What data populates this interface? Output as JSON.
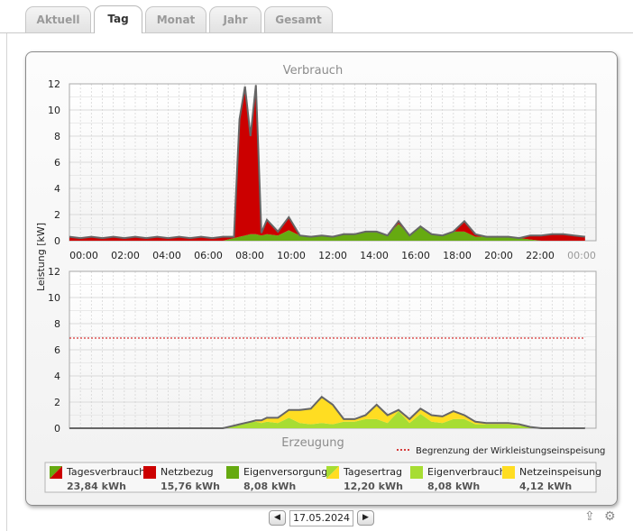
{
  "tabs": [
    {
      "label": "Aktuell",
      "active": false
    },
    {
      "label": "Tag",
      "active": true
    },
    {
      "label": "Monat",
      "active": false
    },
    {
      "label": "Jahr",
      "active": false
    },
    {
      "label": "Gesamt",
      "active": false
    }
  ],
  "colors": {
    "netzbezug": "#cc0000",
    "eigenversorgung": "#66aa11",
    "eigenverbrauch": "#a7dd33",
    "netzeinspeisung": "#ffdd22",
    "outline": "#666666",
    "limit": "#cc0000",
    "title": "#8c8c8c"
  },
  "chart_data": [
    {
      "type": "area",
      "title": "Verbrauch",
      "ylabel": "Leistung [kW]",
      "ylim": [
        0,
        12
      ],
      "yticks": [
        "0",
        "2",
        "4",
        "6",
        "8",
        "10",
        "12"
      ],
      "xticks": [
        "00:00",
        "02:00",
        "04:00",
        "06:00",
        "08:00",
        "10:00",
        "12:00",
        "14:00",
        "16:00",
        "18:00",
        "20:00",
        "22:00",
        "00:00"
      ],
      "x_hours": [
        0,
        0.5,
        1,
        1.5,
        2,
        2.5,
        3,
        3.5,
        4,
        4.5,
        5,
        5.5,
        6,
        6.5,
        7,
        7.5,
        7.75,
        8,
        8.25,
        8.5,
        8.75,
        9,
        9.5,
        10,
        10.5,
        11,
        11.5,
        12,
        12.5,
        13,
        13.5,
        14,
        14.5,
        15,
        15.5,
        16,
        16.5,
        17,
        17.5,
        18,
        18.5,
        19,
        19.5,
        20,
        20.5,
        21,
        21.5,
        22,
        22.5,
        23,
        23.5
      ],
      "series": [
        {
          "name": "Eigenversorgung",
          "values": [
            0,
            0,
            0,
            0,
            0,
            0,
            0,
            0,
            0,
            0,
            0,
            0,
            0,
            0,
            0,
            0.2,
            0.3,
            0.4,
            0.5,
            0.5,
            0.4,
            0.5,
            0.4,
            0.8,
            0.4,
            0.3,
            0.4,
            0.3,
            0.5,
            0.5,
            0.7,
            0.7,
            0.4,
            1.3,
            0.4,
            1.1,
            0.5,
            0.4,
            0.7,
            0.7,
            0.3,
            0.3,
            0.3,
            0.3,
            0.2,
            0.1,
            0,
            0,
            0,
            0,
            0
          ]
        },
        {
          "name": "Netzbezug",
          "values": [
            0.3,
            0.2,
            0.3,
            0.2,
            0.3,
            0.2,
            0.3,
            0.2,
            0.3,
            0.2,
            0.3,
            0.2,
            0.3,
            0.2,
            0.3,
            0.1,
            9.0,
            11.4,
            7.5,
            11.4,
            0.2,
            1.1,
            0.3,
            1.0,
            0,
            0,
            0,
            0,
            0,
            0,
            0,
            0,
            0,
            0.2,
            0,
            0,
            0,
            0,
            0,
            0.8,
            0.2,
            0,
            0,
            0,
            0,
            0.3,
            0.4,
            0.5,
            0.5,
            0.4,
            0.3
          ]
        }
      ],
      "total": [
        0.3,
        0.2,
        0.3,
        0.2,
        0.3,
        0.2,
        0.3,
        0.2,
        0.3,
        0.2,
        0.3,
        0.2,
        0.3,
        0.2,
        0.3,
        0.3,
        9.3,
        11.8,
        8.0,
        11.9,
        0.6,
        1.6,
        0.7,
        1.8,
        0.4,
        0.3,
        0.4,
        0.3,
        0.5,
        0.5,
        0.7,
        0.7,
        0.4,
        1.5,
        0.4,
        1.1,
        0.5,
        0.4,
        0.7,
        1.5,
        0.5,
        0.3,
        0.3,
        0.3,
        0.2,
        0.4,
        0.4,
        0.5,
        0.5,
        0.4,
        0.3
      ]
    },
    {
      "type": "area",
      "title": "Erzeugung",
      "ylabel": "Leistung [kW]",
      "ylim": [
        0,
        12
      ],
      "yticks": [
        "0",
        "2",
        "4",
        "6",
        "8",
        "10",
        "12"
      ],
      "limit_value": 6.9,
      "limit_label": "Begrenzung der Wirkleistungseinspeisung",
      "x_hours": [
        0,
        0.5,
        1,
        1.5,
        2,
        2.5,
        3,
        3.5,
        4,
        4.5,
        5,
        5.5,
        6,
        6.5,
        7,
        7.5,
        7.75,
        8,
        8.25,
        8.5,
        8.75,
        9,
        9.5,
        10,
        10.5,
        11,
        11.5,
        12,
        12.5,
        13,
        13.5,
        14,
        14.5,
        15,
        15.5,
        16,
        16.5,
        17,
        17.5,
        18,
        18.5,
        19,
        19.5,
        20,
        20.5,
        21,
        21.5,
        22,
        22.5,
        23,
        23.5
      ],
      "series": [
        {
          "name": "Eigenverbrauch",
          "values": [
            0,
            0,
            0,
            0,
            0,
            0,
            0,
            0,
            0,
            0,
            0,
            0,
            0,
            0,
            0,
            0.2,
            0.3,
            0.4,
            0.5,
            0.5,
            0.4,
            0.5,
            0.4,
            0.8,
            0.4,
            0.3,
            0.4,
            0.3,
            0.5,
            0.5,
            0.7,
            0.7,
            0.4,
            1.3,
            0.4,
            1.1,
            0.5,
            0.4,
            0.7,
            0.7,
            0.3,
            0.3,
            0.3,
            0.3,
            0.2,
            0.1,
            0,
            0,
            0,
            0,
            0
          ]
        },
        {
          "name": "Netzeinspeisung",
          "values": [
            0,
            0,
            0,
            0,
            0,
            0,
            0,
            0,
            0,
            0,
            0,
            0,
            0,
            0,
            0,
            0,
            0,
            0,
            0,
            0.1,
            0.2,
            0.3,
            0.4,
            0.6,
            1.0,
            1.2,
            2.0,
            1.5,
            0.2,
            0.2,
            0.3,
            1.1,
            0.6,
            0.1,
            0.3,
            0.4,
            0.5,
            0.5,
            0.6,
            0.3,
            0.2,
            0.1,
            0.1,
            0.1,
            0.1,
            0,
            0,
            0,
            0,
            0,
            0
          ]
        }
      ]
    }
  ],
  "legend": [
    {
      "label": "Tagesverbrauch",
      "value": "23,84 kWh",
      "swatch": "split-red-green"
    },
    {
      "label": "Netzbezug",
      "value": "15,76 kWh",
      "swatch": "red"
    },
    {
      "label": "Eigenversorgung",
      "value": "8,08 kWh",
      "swatch": "green"
    },
    {
      "label": "Tagesertrag",
      "value": "12,20 kWh",
      "swatch": "split-green-yellow"
    },
    {
      "label": "Eigenverbrauch",
      "value": "8,08 kWh",
      "swatch": "lightgreen"
    },
    {
      "label": "Netzeinspeisung",
      "value": "4,12 kWh",
      "swatch": "yellow"
    }
  ],
  "date": "17.05.2024",
  "nav": {
    "prev_icon": "arrow-left-icon",
    "next_icon": "arrow-right-icon",
    "prev_glyph": "◀",
    "next_glyph": "▶"
  },
  "tools": {
    "export_icon": "export-icon",
    "settings_icon": "gear-icon",
    "export_glyph": "⇪",
    "settings_glyph": "⚙"
  }
}
